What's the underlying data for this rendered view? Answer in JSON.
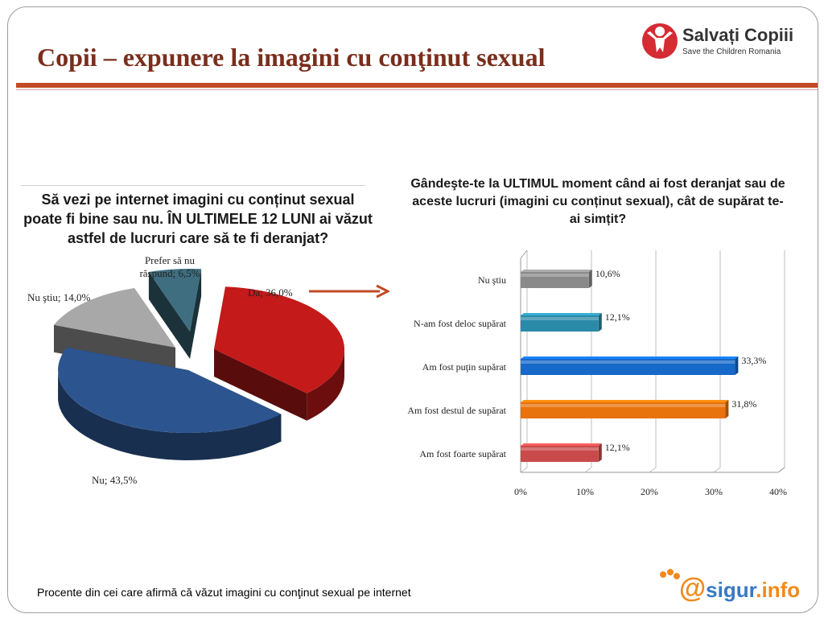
{
  "title": "Copii – expunere la imagini cu conţinut sexual",
  "logo": {
    "name": "Salvați Copiii",
    "subtitle": "Save the Children Romania",
    "accent": "#d52b33"
  },
  "footnote": "Procente din cei care afirmă că văzut imagini cu conţinut sexual pe internet",
  "sigur_logo": {
    "part1": "sigur",
    "part2": ".info",
    "accent": "#f08a1c"
  },
  "chart_data": [
    {
      "type": "pie",
      "title": "Să vezi pe internet imagini cu conținut sexual poate fi bine sau nu. ÎN ULTIMELE 12 LUNI ai văzut astfel de lucruri care să te fi deranjat?",
      "slices": [
        {
          "label": "Da; 36,0%",
          "name": "Da",
          "value": 36.0,
          "color": "#c41a1a"
        },
        {
          "label": "Nu; 43,5%",
          "name": "Nu",
          "value": 43.5,
          "color": "#2c5590"
        },
        {
          "label": "Nu ştiu; 14,0%",
          "name": "Nu ştiu",
          "value": 14.0,
          "color": "#a8a8a8"
        },
        {
          "label": "Prefer să nu răspund; 6,5%",
          "name": "Prefer să nu răspund",
          "value": 6.5,
          "color": "#3e6e80"
        }
      ]
    },
    {
      "type": "bar",
      "orientation": "horizontal",
      "title": "Gândeşte-te la ULTIMUL moment când ai fost deranjat sau de aceste lucruri (imagini cu conținut sexual), cât de supărat te-ai simțit?",
      "categories": [
        "Nu ştiu",
        "N-am fost deloc supărat",
        "Am fost puţin supărat",
        "Am fost destul de supărat",
        "Am fost foarte supărat"
      ],
      "values": [
        10.6,
        12.1,
        33.3,
        31.8,
        12.1
      ],
      "value_labels": [
        "10,6%",
        "12,1%",
        "33,3%",
        "31,8%",
        "12,1%"
      ],
      "colors": [
        "#8a8a8a",
        "#2b8aa8",
        "#1669c8",
        "#e8720c",
        "#c84a4a"
      ],
      "xlim": [
        0,
        40
      ],
      "xticks": [
        "0%",
        "10%",
        "20%",
        "30%",
        "40%"
      ],
      "grid": true
    }
  ]
}
